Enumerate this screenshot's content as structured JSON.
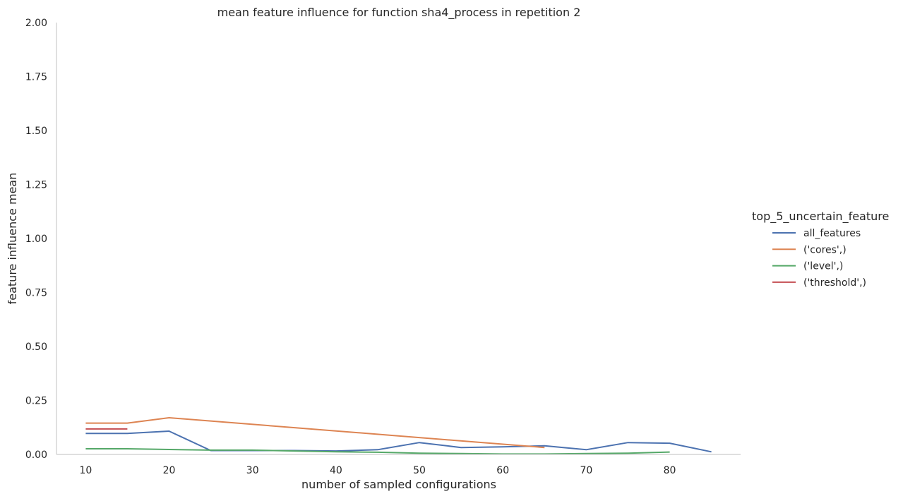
{
  "chart_data": {
    "type": "line",
    "title": "mean feature influence for function sha4_process in repetition 2",
    "xlabel": "number of sampled configurations",
    "ylabel": "feature influence mean",
    "xlim": [
      6.5,
      88.5
    ],
    "ylim": [
      0,
      2.0
    ],
    "xticks": [
      "10",
      "20",
      "30",
      "40",
      "50",
      "60",
      "70",
      "80"
    ],
    "xtick_values": [
      10,
      20,
      30,
      40,
      50,
      60,
      70,
      80
    ],
    "yticks": [
      "0.00",
      "0.25",
      "0.50",
      "0.75",
      "1.00",
      "1.25",
      "1.50",
      "1.75",
      "2.00"
    ],
    "ytick_values": [
      0,
      0.25,
      0.5,
      0.75,
      1.0,
      1.25,
      1.5,
      1.75,
      2.0
    ],
    "grid": false,
    "legend_title": "top_5_uncertain_feature",
    "legend_position": "right",
    "series": [
      {
        "name": "all_features",
        "color": "#4c72b0",
        "x": [
          10,
          15,
          20,
          25,
          30,
          35,
          40,
          45,
          50,
          55,
          60,
          65,
          70,
          75,
          80,
          85
        ],
        "y": [
          0.097,
          0.097,
          0.108,
          0.018,
          0.018,
          0.018,
          0.016,
          0.022,
          0.055,
          0.032,
          0.035,
          0.04,
          0.022,
          0.055,
          0.052,
          0.012
        ]
      },
      {
        "name": "('cores',)",
        "color": "#dd8452",
        "x": [
          10,
          15,
          20,
          65
        ],
        "y": [
          0.145,
          0.145,
          0.17,
          0.032
        ]
      },
      {
        "name": "('level',)",
        "color": "#55a868",
        "x": [
          10,
          15,
          20,
          25,
          30,
          35,
          40,
          45,
          50,
          55,
          60,
          65,
          70,
          75,
          80
        ],
        "y": [
          0.026,
          0.026,
          0.023,
          0.02,
          0.02,
          0.016,
          0.012,
          0.01,
          0.006,
          0.004,
          0.002,
          0.002,
          0.004,
          0.006,
          0.011
        ]
      },
      {
        "name": "('threshold',)",
        "color": "#c44e52",
        "x": [
          10,
          15
        ],
        "y": [
          0.118,
          0.118
        ]
      }
    ]
  }
}
